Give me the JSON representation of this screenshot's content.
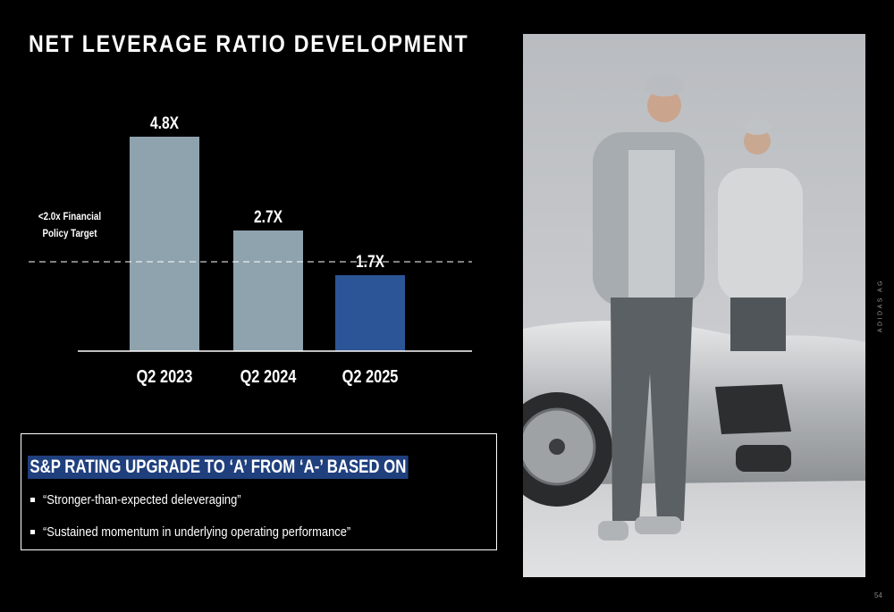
{
  "slide": {
    "title": "NET LEVERAGE RATIO DEVELOPMENT",
    "brand_vertical": "ADIDAS AG",
    "page_number": "54"
  },
  "chart_data": {
    "type": "bar",
    "categories": [
      "Q2 2023",
      "Q2 2024",
      "Q2 2025"
    ],
    "values": [
      4.8,
      2.7,
      1.7
    ],
    "data_labels": [
      "4.8X",
      "2.7X",
      "1.7X"
    ],
    "bar_colors": [
      "#8fa3ae",
      "#8fa3ae",
      "#2b5596"
    ],
    "ylim": [
      0,
      4.8
    ],
    "reference_line": {
      "value": 2.0,
      "label_lines": [
        "<2.0x Financial",
        "Policy Target"
      ],
      "style": "dashed"
    },
    "grid": false,
    "title": "",
    "xlabel": "",
    "ylabel": ""
  },
  "rating_box": {
    "heading": "S&P RATING UPGRADE TO ‘A’ FROM ‘A-’ BASED ON",
    "heading_bg": "#1f3f7d",
    "bullets": [
      "“Stronger-than-expected deleveraging”",
      "“Sustained momentum in underlying operating performance”"
    ]
  },
  "photo": {
    "kind": "photograph"
  }
}
